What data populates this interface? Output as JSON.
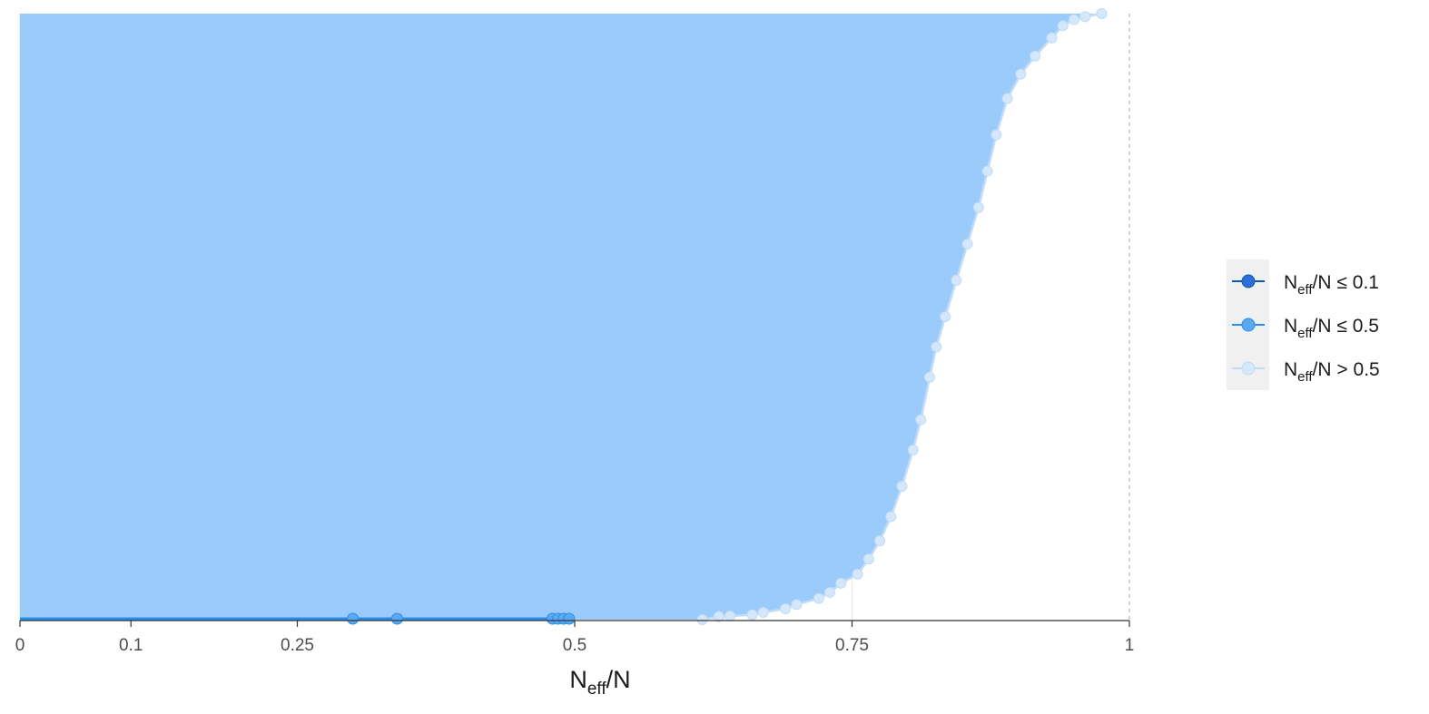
{
  "chart_data": {
    "type": "line",
    "orientation": "horizontal",
    "title": "",
    "xlim": [
      0,
      1
    ],
    "x_ticks": [
      0,
      0.1,
      0.25,
      0.5,
      0.75,
      1
    ],
    "x_tick_labels": [
      "0",
      "0.1",
      "0.25",
      "0.5",
      "0.75",
      "1"
    ],
    "xlabel": {
      "main": "N",
      "sub": "eff",
      "rest": "/N"
    },
    "ylabel": "",
    "y_ticks": [],
    "grid": "vertical major lines only",
    "reference_line": {
      "x": 1,
      "style": "dashed"
    },
    "legend_position": "right",
    "legend": [
      {
        "key": "low",
        "main": "N",
        "sub": "eff",
        "rest": "/N ≤ 0.1",
        "color": "#0b59b2",
        "fill": "#2a6ed6"
      },
      {
        "key": "mid",
        "main": "N",
        "sub": "eff",
        "rest": "/N ≤ 0.5",
        "color": "#2a8ee8",
        "fill": "#5aa9f0"
      },
      {
        "key": "high",
        "main": "N",
        "sub": "eff",
        "rest": "/N > 0.5",
        "color": "#c0dcf7",
        "fill": "#d5e7fa"
      }
    ],
    "series": [
      {
        "category": "mid",
        "values": [
          0.01,
          0.3,
          0.34,
          0.48,
          0.485,
          0.49,
          0.495
        ]
      },
      {
        "category": "high",
        "curve": [
          [
            0.615,
            0.0
          ],
          [
            0.63,
            0.005
          ],
          [
            0.64,
            0.006
          ],
          [
            0.66,
            0.008
          ],
          [
            0.67,
            0.012
          ],
          [
            0.69,
            0.018
          ],
          [
            0.7,
            0.025
          ],
          [
            0.72,
            0.035
          ],
          [
            0.73,
            0.045
          ],
          [
            0.74,
            0.06
          ],
          [
            0.755,
            0.075
          ],
          [
            0.765,
            0.1
          ],
          [
            0.775,
            0.13
          ],
          [
            0.785,
            0.17
          ],
          [
            0.795,
            0.22
          ],
          [
            0.805,
            0.28
          ],
          [
            0.812,
            0.33
          ],
          [
            0.82,
            0.4
          ],
          [
            0.826,
            0.45
          ],
          [
            0.834,
            0.5
          ],
          [
            0.844,
            0.56
          ],
          [
            0.854,
            0.62
          ],
          [
            0.864,
            0.68
          ],
          [
            0.872,
            0.74
          ],
          [
            0.88,
            0.8
          ],
          [
            0.89,
            0.86
          ],
          [
            0.902,
            0.9
          ],
          [
            0.915,
            0.93
          ],
          [
            0.93,
            0.96
          ],
          [
            0.94,
            0.98
          ],
          [
            0.95,
            0.99
          ],
          [
            0.96,
            0.995
          ],
          [
            0.975,
            1.0
          ]
        ]
      }
    ]
  }
}
